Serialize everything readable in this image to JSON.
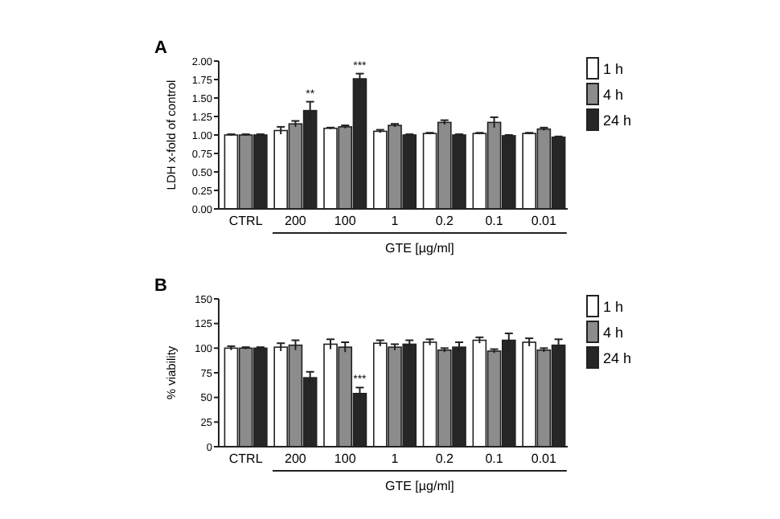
{
  "chart_data": [
    {
      "type": "bar",
      "title": "A",
      "ylabel": "LDH x-fold of control",
      "xlabel": "GTE [µg/ml]",
      "categories": [
        "CTRL",
        "200",
        "100",
        "1",
        "0.2",
        "0.1",
        "0.01"
      ],
      "series": [
        {
          "name": "1 h",
          "color": "#ffffff",
          "values": [
            1.0,
            1.06,
            1.09,
            1.05,
            1.02,
            1.02,
            1.02
          ],
          "errors": [
            0.01,
            0.05,
            0.01,
            0.02,
            0.01,
            0.01,
            0.01
          ]
        },
        {
          "name": "4 h",
          "color": "#8c8c8c",
          "values": [
            1.0,
            1.15,
            1.11,
            1.13,
            1.17,
            1.17,
            1.08
          ],
          "errors": [
            0.01,
            0.04,
            0.02,
            0.02,
            0.03,
            0.07,
            0.02
          ]
        },
        {
          "name": "24 h",
          "color": "#262626",
          "values": [
            1.0,
            1.33,
            1.76,
            1.0,
            1.0,
            0.99,
            0.97
          ],
          "errors": [
            0.01,
            0.12,
            0.07,
            0.01,
            0.01,
            0.01,
            0.01
          ]
        }
      ],
      "ylim": [
        0,
        2
      ],
      "yticks": [
        {
          "value": 0,
          "label": "0.00"
        },
        {
          "value": 0.25,
          "label": "0.25"
        },
        {
          "value": 0.5,
          "label": "0.50"
        },
        {
          "value": 0.75,
          "label": "0.75"
        },
        {
          "value": 1,
          "label": "1.00"
        },
        {
          "value": 1.25,
          "label": "1.25"
        },
        {
          "value": 1.5,
          "label": "1.50"
        },
        {
          "value": 1.75,
          "label": "1.75"
        },
        {
          "value": 2,
          "label": "2.00"
        }
      ],
      "annotations": [
        "**",
        "***"
      ],
      "legend": "right",
      "grid": false
    },
    {
      "type": "bar",
      "title": "B",
      "ylabel": "% viability",
      "xlabel": "GTE [µg/ml]",
      "categories": [
        "CTRL",
        "200",
        "100",
        "1",
        "0.2",
        "0.1",
        "0.01"
      ],
      "series": [
        {
          "name": "1 h",
          "color": "#ffffff",
          "values": [
            100,
            101,
            104,
            105,
            106,
            108,
            106
          ],
          "errors": [
            2,
            4,
            5,
            3,
            3,
            3,
            4
          ]
        },
        {
          "name": "4 h",
          "color": "#8c8c8c",
          "values": [
            100,
            103,
            101,
            101,
            98,
            97,
            98
          ],
          "errors": [
            1,
            5,
            5,
            3,
            2,
            2,
            2
          ]
        },
        {
          "name": "24 h",
          "color": "#262626",
          "values": [
            100,
            70,
            54,
            104,
            101,
            108,
            103
          ],
          "errors": [
            1,
            6,
            6,
            4,
            5,
            7,
            6
          ]
        }
      ],
      "ylim": [
        0,
        150
      ],
      "yticks": [
        0,
        25,
        50,
        75,
        100,
        125,
        150
      ],
      "annotations": [
        {
          "text": "***",
          "x": "100",
          "y": 54
        }
      ],
      "legend": "right",
      "grid": false
    }
  ]
}
